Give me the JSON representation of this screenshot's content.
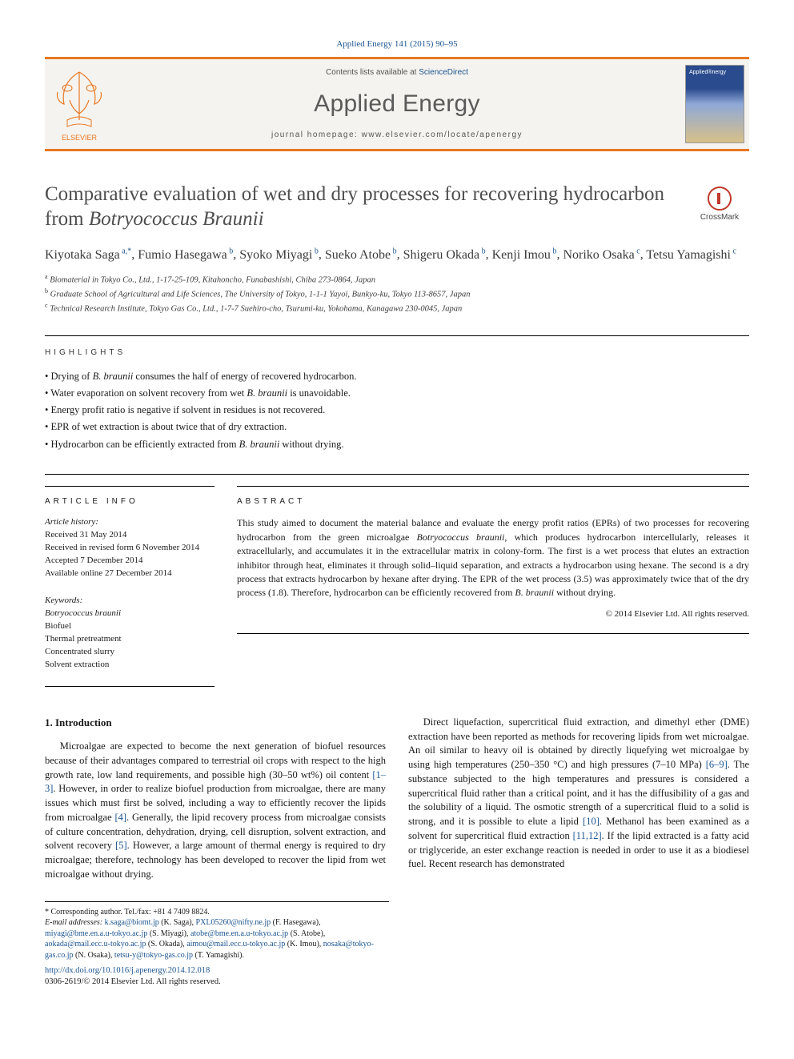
{
  "citation": "Applied Energy 141 (2015) 90–95",
  "header": {
    "contents_prefix": "Contents lists available at ",
    "contents_link": "ScienceDirect",
    "journal": "Applied Energy",
    "homepage_prefix": "journal homepage: ",
    "homepage_url": "www.elsevier.com/locate/apenergy"
  },
  "title_main": "Comparative evaluation of wet and dry processes for recovering hydrocarbon from ",
  "title_italic": "Botryococcus Braunii",
  "crossmark_label": "CrossMark",
  "authors": [
    {
      "name": "Kiyotaka Saga",
      "aff": "a,*"
    },
    {
      "name": "Fumio Hasegawa",
      "aff": "b"
    },
    {
      "name": "Syoko Miyagi",
      "aff": "b"
    },
    {
      "name": "Sueko Atobe",
      "aff": "b"
    },
    {
      "name": "Shigeru Okada",
      "aff": "b"
    },
    {
      "name": "Kenji Imou",
      "aff": "b"
    },
    {
      "name": "Noriko Osaka",
      "aff": "c"
    },
    {
      "name": "Tetsu Yamagishi",
      "aff": "c"
    }
  ],
  "affiliations": [
    {
      "sup": "a",
      "text": "Biomaterial in Tokyo Co., Ltd., 1-17-25-109, Kitahoncho, Funabashishi, Chiba 273-0864, Japan"
    },
    {
      "sup": "b",
      "text": "Graduate School of Agricultural and Life Sciences, The University of Tokyo, 1-1-1 Yayoi, Bunkyo-ku, Tokyo 113-8657, Japan"
    },
    {
      "sup": "c",
      "text": "Technical Research Institute, Tokyo Gas Co., Ltd., 1-7-7 Suehiro-cho, Tsurumi-ku, Yokohama, Kanagawa 230-0045, Japan"
    }
  ],
  "highlights_label": "HIGHLIGHTS",
  "highlights": [
    {
      "pre": "Drying of ",
      "it": "B. braunii",
      "post": " consumes the half of energy of recovered hydrocarbon."
    },
    {
      "pre": "Water evaporation on solvent recovery from wet ",
      "it": "B. braunii",
      "post": " is unavoidable."
    },
    {
      "pre": "Energy profit ratio is negative if solvent in residues is not recovered.",
      "it": "",
      "post": ""
    },
    {
      "pre": "EPR of wet extraction is about twice that of dry extraction.",
      "it": "",
      "post": ""
    },
    {
      "pre": "Hydrocarbon can be efficiently extracted from ",
      "it": "B. braunii",
      "post": " without drying."
    }
  ],
  "article_info_label": "ARTICLE INFO",
  "history_label": "Article history:",
  "history": [
    "Received 31 May 2014",
    "Received in revised form 6 November 2014",
    "Accepted 7 December 2014",
    "Available online 27 December 2014"
  ],
  "keywords_label": "Keywords:",
  "keywords": [
    {
      "text": "Botryococcus braunii",
      "italic": true
    },
    {
      "text": "Biofuel",
      "italic": false
    },
    {
      "text": "Thermal pretreatment",
      "italic": false
    },
    {
      "text": "Concentrated slurry",
      "italic": false
    },
    {
      "text": "Solvent extraction",
      "italic": false
    }
  ],
  "abstract_label": "ABSTRACT",
  "abstract_text_1": "This study aimed to document the material balance and evaluate the energy profit ratios (EPRs) of two processes for recovering hydrocarbon from the green microalgae ",
  "abstract_italic_1": "Botryococcus braunii",
  "abstract_text_2": ", which produces hydrocarbon intercellularly, releases it extracellularly, and accumulates it in the extracellular matrix in colony-form. The first is a wet process that elutes an extraction inhibitor through heat, eliminates it through solid–liquid separation, and extracts a hydrocarbon using hexane. The second is a dry process that extracts hydrocarbon by hexane after drying. The EPR of the wet process (3.5) was approximately twice that of the dry process (1.8). Therefore, hydrocarbon can be efficiently recovered from ",
  "abstract_italic_2": "B. braunii",
  "abstract_text_3": " without drying.",
  "abstract_copyright": "© 2014 Elsevier Ltd. All rights reserved.",
  "intro_heading": "1. Introduction",
  "intro_p1_a": "Microalgae are expected to become the next generation of biofuel resources because of their advantages compared to terrestrial oil crops with respect to the high growth rate, low land requirements, and possible high (30–50 wt%) oil content ",
  "intro_p1_ref1": "[1–3]",
  "intro_p1_b": ". However, in order to realize biofuel production from microalgae, there are many issues which must first be solved, including a way to efficiently recover the lipids from microalgae ",
  "intro_p1_ref2": "[4]",
  "intro_p1_c": ". Generally, the lipid recovery process from microalgae consists of culture concentration, dehydration, drying, cell disruption, solvent extraction, and solvent recovery ",
  "intro_p1_ref3": "[5]",
  "intro_p1_d": ". However, a large amount of thermal energy is required to dry microalgae; therefore, technology has been developed to recover the lipid from wet microalgae without drying.",
  "intro_p2_a": "Direct liquefaction, supercritical fluid extraction, and dimethyl ether (DME) extraction have been reported as methods for recovering lipids from wet microalgae. An oil similar to heavy oil is obtained by directly liquefying wet microalgae by using high temperatures (250–350 °C) and high pressures (7–10 MPa) ",
  "intro_p2_ref1": "[6–9]",
  "intro_p2_b": ". The substance subjected to the high temperatures and pressures is considered a supercritical fluid rather than a critical point, and it has the diffusibility of a gas and the solubility of a liquid. The osmotic strength of a supercritical fluid to a solid is strong, and it is possible to elute a lipid ",
  "intro_p2_ref2": "[10]",
  "intro_p2_c": ". Methanol has been examined as a solvent for supercritical fluid extraction ",
  "intro_p2_ref3": "[11,12]",
  "intro_p2_d": ". If the lipid extracted is a fatty acid or triglyceride, an ester exchange reaction is needed in order to use it as a biodiesel fuel. Recent research has demonstrated",
  "footnotes": {
    "corr": "* Corresponding author. Tel./fax: +81 4 7409 8824.",
    "emails_label": "E-mail addresses:",
    "emails": [
      {
        "email": "k.saga@biomt.jp",
        "who": "(K. Saga)"
      },
      {
        "email": "PXL05260@nifty.ne.jp",
        "who": "(F. Hasegawa)"
      },
      {
        "email": "miyagi@bme.en.a.u-tokyo.ac.jp",
        "who": "(S. Miyagi)"
      },
      {
        "email": "atobe@bme.en.a.u-tokyo.ac.jp",
        "who": "(S. Atobe)"
      },
      {
        "email": "aokada@mail.ecc.u-tokyo.ac.jp",
        "who": "(S. Okada)"
      },
      {
        "email": "aimou@mail.ecc.u-tokyo.ac.jp",
        "who": "(K. Imou)"
      },
      {
        "email": "nosaka@tokyo-gas.co.jp",
        "who": "(N. Osaka)"
      },
      {
        "email": "tetsu-y@tokyo-gas.co.jp",
        "who": "(T. Yamagishi)"
      }
    ]
  },
  "doi": "http://dx.doi.org/10.1016/j.apenergy.2014.12.018",
  "issn_line": "0306-2619/© 2014 Elsevier Ltd. All rights reserved.",
  "colors": {
    "accent_orange": "#e87722",
    "link_blue": "#1a5490",
    "header_bg": "#f5f3ef",
    "title_gray": "#4e4e4e"
  }
}
